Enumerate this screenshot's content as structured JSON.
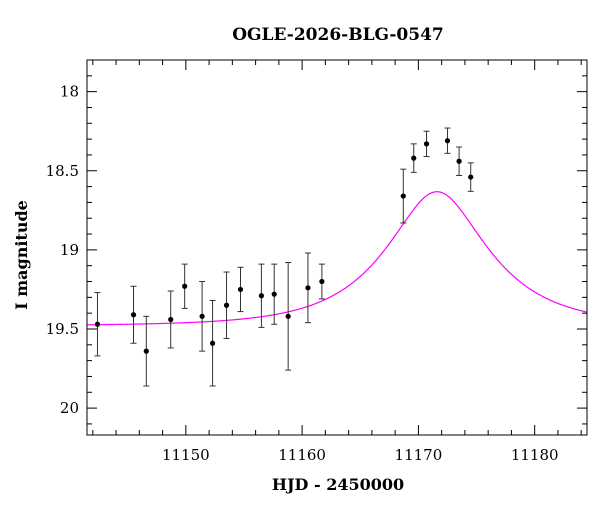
{
  "chart_data": {
    "type": "scatter",
    "title": "OGLE-2026-BLG-0547",
    "xlabel": "HJD - 2450000",
    "ylabel": "I magnitude",
    "xlim": [
      11141.5,
      11184.5
    ],
    "ylim": [
      20.17,
      17.8
    ],
    "y_inverted": true,
    "x_ticks": [
      11150,
      11160,
      11170,
      11180
    ],
    "x_tick_labels": [
      "11150",
      "11160",
      "11170",
      "11180"
    ],
    "y_ticks": [
      18.0,
      18.5,
      19.0,
      19.5,
      20.0
    ],
    "y_tick_labels": [
      "18",
      "18.5",
      "19",
      "19.5",
      "20"
    ],
    "x_minor_step": 2,
    "y_minor_step": 0.1,
    "grid": false,
    "colors": {
      "points": "#000000",
      "model": "#ff00ff",
      "axes": "#000000"
    },
    "series": [
      {
        "points": [
          {
            "x": 11142.4,
            "y": 19.47,
            "err": 0.2
          },
          {
            "x": 11145.5,
            "y": 19.41,
            "err": 0.18
          },
          {
            "x": 11146.6,
            "y": 19.64,
            "err": 0.22
          },
          {
            "x": 11148.7,
            "y": 19.44,
            "err": 0.18
          },
          {
            "x": 11149.9,
            "y": 19.23,
            "err": 0.14
          },
          {
            "x": 11151.4,
            "y": 19.42,
            "err": 0.22
          },
          {
            "x": 11152.3,
            "y": 19.59,
            "err": 0.27
          },
          {
            "x": 11153.5,
            "y": 19.35,
            "err": 0.21
          },
          {
            "x": 11154.7,
            "y": 19.25,
            "err": 0.14
          },
          {
            "x": 11156.5,
            "y": 19.29,
            "err": 0.2
          },
          {
            "x": 11157.6,
            "y": 19.28,
            "err": 0.19
          },
          {
            "x": 11158.8,
            "y": 19.42,
            "err": 0.34
          },
          {
            "x": 11160.5,
            "y": 19.24,
            "err": 0.22
          },
          {
            "x": 11161.7,
            "y": 19.2,
            "err": 0.11
          },
          {
            "x": 11168.7,
            "y": 18.66,
            "err": 0.17
          },
          {
            "x": 11169.6,
            "y": 18.42,
            "err": 0.09
          },
          {
            "x": 11170.7,
            "y": 18.33,
            "err": 0.08
          },
          {
            "x": 11172.5,
            "y": 18.31,
            "err": 0.08
          },
          {
            "x": 11173.5,
            "y": 18.44,
            "err": 0.09
          },
          {
            "x": 11174.5,
            "y": 18.54,
            "err": 0.09
          }
        ]
      },
      {
        "model": {
          "t0": 11171.6,
          "u0": 0.5,
          "tE": 7.5,
          "baseline_mag": 19.48,
          "x_range": [
            11141.5,
            11184.5
          ]
        }
      }
    ]
  }
}
